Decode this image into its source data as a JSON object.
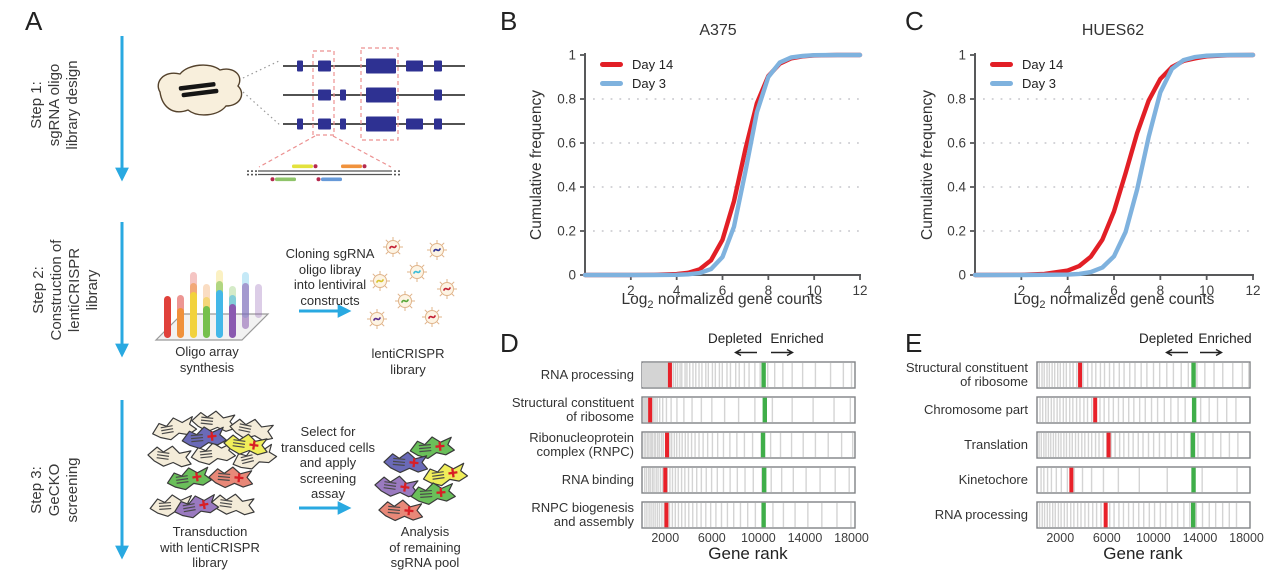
{
  "colors": {
    "day14_red": "#e21f26",
    "day3_blue": "#7fb2de",
    "workflow_arrow_blue": "#29a9e1",
    "exon_blue": "#2e3192",
    "depleted_marker_red": "#e8212a",
    "enriched_marker_green": "#3fae49"
  },
  "panels": {
    "A": {
      "letter": "A",
      "steps": [
        {
          "label": "Step 1:\nsgRNA oligo\nlibrary design"
        },
        {
          "label": "Step 2:\nConstruction of\nlentiCRISPR\nlibrary"
        },
        {
          "label": "Step 3:\nGeCKO\nscreening"
        }
      ],
      "captions": {
        "oligo_array": "Oligo array\nsynthesis",
        "cloning": "Cloning sgRNA\noligo libray\ninto lentiviral\nconstructs",
        "lenticrispr_library": "lentiCRISPR\nlibrary",
        "transduction": "Transduction\nwith lentiCRISPR\nlibrary",
        "selection": "Select for\ntransduced cells\nand apply\nscreening\nassay",
        "analysis": "Analysis\nof remaining\nsgRNA pool"
      }
    },
    "B": {
      "letter": "B"
    },
    "C": {
      "letter": "C"
    },
    "D": {
      "letter": "D"
    },
    "E": {
      "letter": "E"
    }
  },
  "chart_data": [
    {
      "type": "line",
      "panel": "B",
      "title": "A375",
      "xlabel": "Log2 normalized gene counts",
      "xlabel_pre": "Log",
      "xlabel_sub": "2",
      "xlabel_post": " normalized gene counts",
      "ylabel": "Cumulative frequency",
      "xlim": [
        0,
        12
      ],
      "ylim": [
        0,
        1
      ],
      "xticks": [
        2,
        4,
        6,
        8,
        10,
        12
      ],
      "yticks": [
        0,
        0.2,
        0.4,
        0.6,
        0.8,
        1
      ],
      "grid": "dotted-horizontal",
      "legend_position": "top-left",
      "x": [
        0,
        2,
        3,
        4,
        4.5,
        5,
        5.5,
        6,
        6.5,
        7,
        7.5,
        8,
        8.5,
        9,
        9.5,
        10,
        11,
        12
      ],
      "series": [
        {
          "name": "Day 14",
          "color": "#e21f26",
          "values": [
            0,
            0,
            0.001,
            0.004,
            0.01,
            0.026,
            0.067,
            0.16,
            0.336,
            0.572,
            0.781,
            0.904,
            0.961,
            0.985,
            0.994,
            0.998,
            1,
            1
          ]
        },
        {
          "name": "Day 3",
          "color": "#7fb2de",
          "values": [
            0,
            0,
            0,
            0.001,
            0.003,
            0.009,
            0.027,
            0.082,
            0.22,
            0.47,
            0.74,
            0.9,
            0.966,
            0.989,
            0.996,
            0.999,
            1,
            1
          ]
        }
      ]
    },
    {
      "type": "line",
      "panel": "C",
      "title": "HUES62",
      "xlabel": "Log2 normalized gene counts",
      "xlabel_pre": "Log",
      "xlabel_sub": "2",
      "xlabel_post": " normalized gene counts",
      "ylabel": "Cumulative frequency",
      "xlim": [
        0,
        12
      ],
      "ylim": [
        0,
        1
      ],
      "xticks": [
        2,
        4,
        6,
        8,
        10,
        12
      ],
      "yticks": [
        0,
        0.2,
        0.4,
        0.6,
        0.8,
        1
      ],
      "grid": "dotted-horizontal",
      "legend_position": "top-left",
      "x": [
        0,
        2,
        3,
        4,
        4.5,
        5,
        5.5,
        6,
        6.5,
        7,
        7.5,
        8,
        8.5,
        9,
        9.5,
        10,
        11,
        12
      ],
      "series": [
        {
          "name": "Day 14",
          "color": "#e21f26",
          "values": [
            0,
            0.001,
            0.005,
            0.02,
            0.041,
            0.083,
            0.161,
            0.289,
            0.463,
            0.646,
            0.794,
            0.891,
            0.945,
            0.973,
            0.985,
            0.994,
            0.999,
            1
          ]
        },
        {
          "name": "Day 3",
          "color": "#7fb2de",
          "values": [
            0,
            0,
            0.001,
            0.002,
            0.005,
            0.013,
            0.034,
            0.085,
            0.196,
            0.39,
            0.63,
            0.83,
            0.937,
            0.977,
            0.991,
            0.997,
            1,
            1
          ]
        }
      ]
    },
    {
      "type": "gene-rank",
      "panel": "D",
      "xlabel": "Gene rank",
      "xmax": 18300,
      "xticks": [
        2000,
        6000,
        10000,
        14000,
        18000
      ],
      "annotations": {
        "depleted": "Depleted",
        "enriched": "Enriched"
      },
      "marker_colors": {
        "red": "#e8212a",
        "green": "#3fae49"
      },
      "rows": [
        {
          "label": "RNA processing",
          "red": 2400,
          "green": 10450,
          "gray": [
            60,
            120,
            180,
            240,
            300,
            360,
            420,
            480,
            540,
            600,
            660,
            720,
            780,
            840,
            900,
            960,
            1020,
            1080,
            1140,
            1200,
            1260,
            1320,
            1380,
            1440,
            1500,
            1560,
            1620,
            1680,
            1740,
            1800,
            1860,
            1920,
            1980,
            2040,
            2100,
            2160,
            2220,
            2540,
            2700,
            2880,
            3060,
            3270,
            3420,
            3700,
            3860,
            4100,
            4380,
            4620,
            4900,
            5150,
            5480,
            5700,
            6050,
            6300,
            6650,
            6900,
            7300,
            7600,
            8050,
            8350,
            8800,
            9200,
            9700,
            10150,
            10800,
            11400,
            12100,
            12900,
            13800,
            14900,
            16200,
            17300,
            18000
          ]
        },
        {
          "label": "Structural constituent\nof ribosome",
          "red": 700,
          "green": 10550,
          "gray": [
            150,
            240,
            340,
            430,
            520,
            610,
            720,
            830,
            960,
            1120,
            1300,
            1520,
            1780,
            2100,
            2500,
            3000,
            3600,
            4300,
            5100,
            6000,
            7100,
            8300,
            9700,
            11200,
            12900,
            14700,
            16500,
            17900
          ]
        },
        {
          "label": "Ribonucleoprotein\ncomplex (RNPC)",
          "red": 2150,
          "green": 10400,
          "gray": [
            190,
            320,
            480,
            600,
            760,
            880,
            1050,
            1170,
            1350,
            1500,
            1680,
            1830,
            2020,
            2180,
            2390,
            2550,
            2780,
            2980,
            3220,
            3450,
            3720,
            3960,
            4260,
            4560,
            4900,
            5250,
            5640,
            6050,
            6500,
            7000,
            7550,
            8150,
            8800,
            9500,
            10250,
            11050,
            11900,
            12850,
            13850,
            14900,
            16000,
            17150,
            18100
          ]
        },
        {
          "label": "RNA binding",
          "red": 2000,
          "green": 10500,
          "gray": [
            230,
            390,
            570,
            710,
            890,
            1030,
            1220,
            1380,
            1580,
            1760,
            1970,
            2170,
            2400,
            2620,
            2870,
            3110,
            3400,
            3680,
            4000,
            4330,
            4700,
            5100,
            5520,
            5980,
            6470,
            7000,
            7570,
            8190,
            8850,
            9560,
            10300,
            11100,
            12000,
            13000,
            14100,
            15300,
            16600,
            17800
          ]
        },
        {
          "label": "RNPC biogenesis\nand assembly",
          "red": 2100,
          "green": 10450,
          "gray": [
            250,
            420,
            610,
            780,
            960,
            1130,
            1320,
            1500,
            1710,
            1910,
            2140,
            2360,
            2610,
            2860,
            3130,
            3410,
            3710,
            4020,
            4360,
            4710,
            5080,
            5480,
            5900,
            6350,
            6830,
            7340,
            7880,
            8460,
            9080,
            9740,
            10450,
            11250,
            12150,
            13150,
            14250,
            15450,
            16750,
            17950
          ]
        }
      ]
    },
    {
      "type": "gene-rank",
      "panel": "E",
      "xlabel": "Gene rank",
      "xmax": 18300,
      "xticks": [
        2000,
        6000,
        10000,
        14000,
        18000
      ],
      "annotations": {
        "depleted": "Depleted",
        "enriched": "Enriched"
      },
      "marker_colors": {
        "red": "#e8212a",
        "green": "#3fae49"
      },
      "rows": [
        {
          "label": "Structural constituent\nof ribosome",
          "red": 3700,
          "green": 13450,
          "gray": [
            200,
            430,
            620,
            860,
            1060,
            1300,
            1520,
            1780,
            2000,
            2280,
            2520,
            2830,
            3100,
            3420,
            3950,
            4350,
            4720,
            5050,
            5450,
            5800,
            6230,
            6600,
            7070,
            7480,
            7970,
            8420,
            8950,
            9440,
            10010,
            10540,
            11150,
            11720,
            12390,
            13000,
            13740,
            14420,
            15210,
            15960,
            16820,
            17640,
            18200
          ]
        },
        {
          "label": "Chromosome part",
          "red": 5000,
          "green": 13500,
          "gray": [
            260,
            490,
            750,
            970,
            1230,
            1460,
            1730,
            1970,
            2260,
            2510,
            2810,
            3080,
            3400,
            3690,
            4030,
            4340,
            4700,
            5410,
            5770,
            6170,
            6560,
            7000,
            7410,
            7880,
            8320,
            8820,
            9300,
            9840,
            10360,
            10940,
            11500,
            12120,
            12730,
            13400,
            14060,
            14790,
            15510,
            16300,
            17090
          ]
        },
        {
          "label": "Translation",
          "red": 6150,
          "green": 13400,
          "gray": [
            180,
            370,
            590,
            770,
            990,
            1180,
            1410,
            1610,
            1850,
            2060,
            2310,
            2530,
            2800,
            3030,
            3310,
            3560,
            3850,
            4110,
            4420,
            4700,
            5030,
            5330,
            5680,
            6000,
            6370,
            6710,
            7100,
            7460,
            7870,
            8260,
            8700,
            9110,
            9580,
            10020,
            10520,
            11000,
            11540,
            12060,
            12640,
            13200,
            13830,
            14440,
            15120,
            15790,
            16530,
            17260
          ]
        },
        {
          "label": "Kinetochore",
          "red": 2950,
          "green": 13450,
          "gray": [
            350,
            590,
            910,
            1240,
            1660,
            2090,
            2610,
            3190,
            3910,
            4690,
            5710,
            6990,
            8790,
            11190,
            14190,
            17190
          ]
        },
        {
          "label": "RNA processing",
          "red": 5900,
          "green": 13420,
          "gray": [
            220,
            450,
            650,
            890,
            1100,
            1350,
            1570,
            1840,
            2070,
            2350,
            2600,
            2900,
            3170,
            3490,
            3780,
            4120,
            4430,
            4790,
            5120,
            5500,
            5850,
            6250,
            6620,
            7040,
            7430,
            7870,
            8280,
            8740,
            9170,
            9650,
            10100,
            10600,
            11070,
            11590,
            12080,
            12620,
            13130,
            13690,
            14220,
            14800,
            15350,
            15950,
            16520,
            17140
          ]
        }
      ]
    }
  ]
}
